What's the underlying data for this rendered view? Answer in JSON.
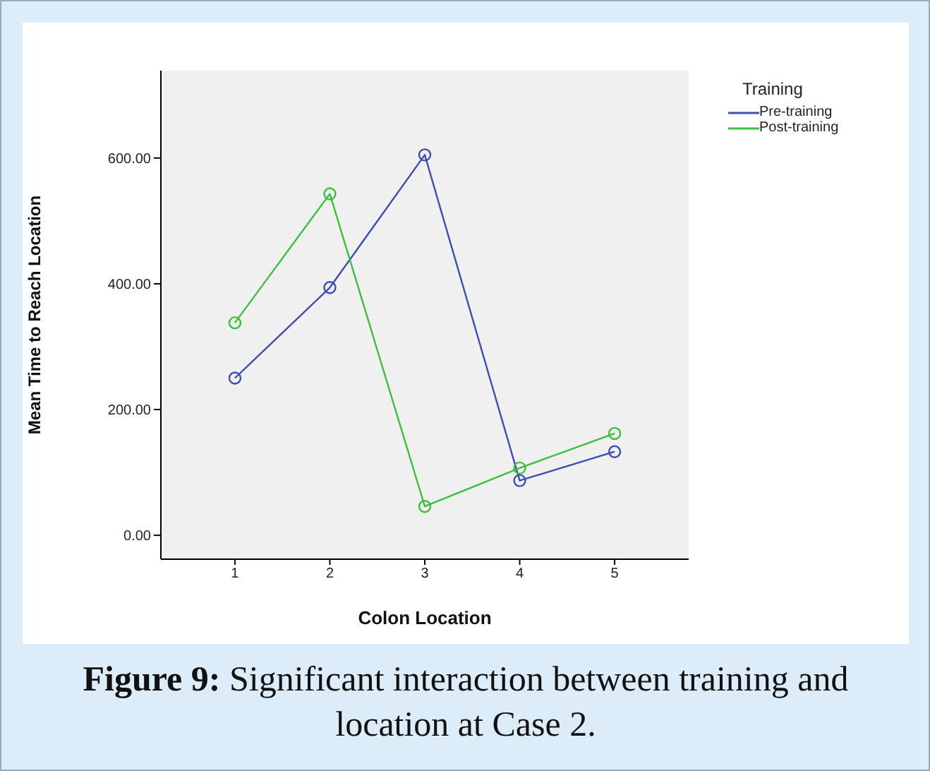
{
  "chart_data": {
    "type": "line",
    "xlabel": "Colon Location",
    "ylabel": "Mean Time to Reach Location",
    "legend_title": "Training",
    "x": [
      1,
      2,
      3,
      4,
      5
    ],
    "xlim": [
      0.22,
      5.78
    ],
    "xticks": [
      1,
      2,
      3,
      4,
      5
    ],
    "ylim": [
      -38,
      739
    ],
    "yticks": [
      {
        "value": 0,
        "label": "0.00"
      },
      {
        "value": 200,
        "label": "200.00"
      },
      {
        "value": 400,
        "label": "400.00"
      },
      {
        "value": 600,
        "label": "600.00"
      }
    ],
    "series": [
      {
        "name": "Pre-training",
        "color": "#3c4fb0",
        "values": [
          250,
          394,
          605,
          87,
          133
        ]
      },
      {
        "name": "Post-training",
        "color": "#3cbf3c",
        "values": [
          338,
          543,
          46,
          107,
          162
        ]
      }
    ],
    "marker": "circle",
    "line_style": "solid",
    "grid": false,
    "legend": "top right",
    "annotations": [
      "Figure 9: Significant interaction between training and location at Case 2."
    ]
  }
}
